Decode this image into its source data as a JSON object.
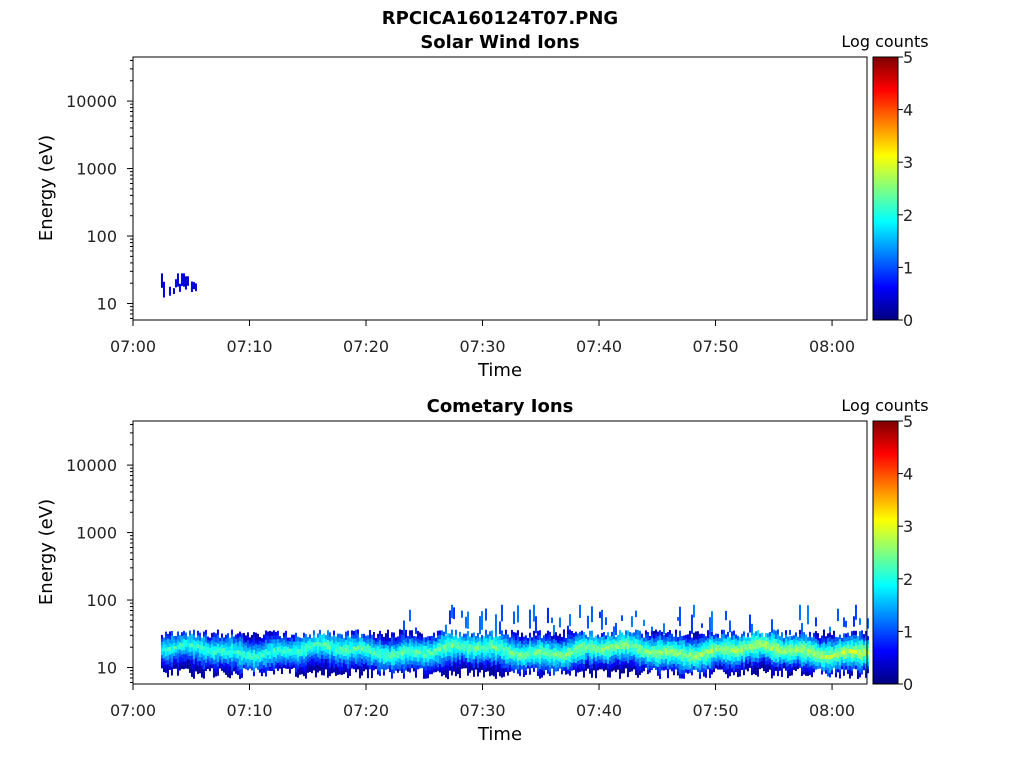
{
  "figure_title": "RPCICA160124T07.PNG",
  "chart_data": [
    {
      "type": "heatmap",
      "title": "Solar Wind Ions",
      "xlabel": "Time",
      "ylabel": "Energy (eV)",
      "x_tick_labels": [
        "07:00",
        "07:10",
        "07:20",
        "07:30",
        "07:40",
        "07:50",
        "08:00"
      ],
      "x_range": [
        "07:00",
        "08:03"
      ],
      "y_scale": "log",
      "y_tick_labels": [
        "10",
        "100",
        "1000",
        "10000"
      ],
      "y_range": [
        5.7,
        45000
      ],
      "colorbar": {
        "label": "Log counts",
        "range": [
          0,
          5
        ],
        "tick_labels": [
          "0",
          "1",
          "2",
          "3",
          "4",
          "5"
        ],
        "colormap": "jet"
      },
      "features": [
        {
          "time_start": "07:02.4",
          "time_end": "07:05.4",
          "energy_low": 12,
          "energy_high": 28,
          "log_counts": 0.3
        }
      ],
      "grid": false,
      "legend": "none"
    },
    {
      "type": "heatmap",
      "title": "Cometary Ions",
      "xlabel": "Time",
      "ylabel": "Energy (eV)",
      "x_tick_labels": [
        "07:00",
        "07:10",
        "07:20",
        "07:30",
        "07:40",
        "07:50",
        "08:00"
      ],
      "x_range": [
        "07:00",
        "08:03"
      ],
      "y_scale": "log",
      "y_tick_labels": [
        "10",
        "100",
        "1000",
        "10000"
      ],
      "y_range": [
        5.7,
        45000
      ],
      "colorbar": {
        "label": "Log counts",
        "range": [
          0,
          5
        ],
        "tick_labels": [
          "0",
          "1",
          "2",
          "3",
          "4",
          "5"
        ],
        "colormap": "jet"
      },
      "features": [
        {
          "description_band": "continuous",
          "time_start": "07:02.4",
          "time_end": "08:03",
          "energy_low": 8,
          "energy_high": 32,
          "peak_energy": 18,
          "peak_log_counts": 2.6
        },
        {
          "description_band": "sporadic",
          "time_start": "07:23",
          "time_end": "08:03",
          "energy_low": 30,
          "energy_high": 85,
          "log_counts": 0.8
        }
      ],
      "grid": false,
      "legend": "none"
    }
  ]
}
